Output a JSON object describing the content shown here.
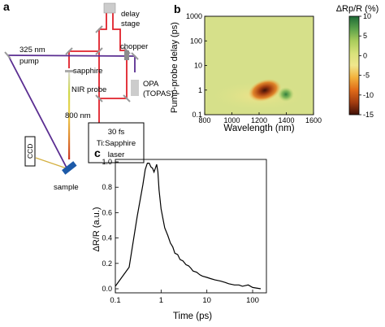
{
  "panel_labels": {
    "a": "a",
    "b": "b",
    "c": "c"
  },
  "schematic": {
    "labels": {
      "delay_stage": [
        "delay",
        "stage"
      ],
      "chopper": "chopper",
      "pump_wavelength": "325 nm",
      "pump": "pump",
      "sapphire": "sapphire",
      "nir_probe": "NIR probe",
      "opa": [
        "OPA",
        "(TOPAS)"
      ],
      "ccd": "CCD",
      "wavelength_800": "800 nm",
      "sample": "sample",
      "laser": [
        "30 fs",
        "Ti:Sapphire",
        "laser"
      ]
    },
    "colors": {
      "red_beam": "#e0202a",
      "purple_beam": "#5a2d91",
      "sample": "#1d5aa8",
      "box": "#000000",
      "mirror": "#999999"
    }
  },
  "chart_data": [
    {
      "type": "heatmap",
      "xlabel": "Wavelength (nm)",
      "ylabel": "Pump-probe delay (ps)",
      "x_ticks": [
        "800",
        "1000",
        "1200",
        "1400",
        "1600"
      ],
      "xlim": [
        800,
        1600
      ],
      "y_scale": "log",
      "y_ticks": [
        "0.1",
        "1",
        "10",
        "100",
        "1000"
      ],
      "ylim": [
        0.1,
        1000
      ],
      "colorbar": {
        "title": "ΔRp/R (%)",
        "ticks": [
          "10",
          "5",
          "0",
          "-5",
          "-10",
          "-15"
        ],
        "range": [
          -15,
          10
        ],
        "colors": [
          "#3f1008",
          "#a33d10",
          "#e06a18",
          "#f2b03a",
          "#f0e68c",
          "#d8e27a",
          "#a9cc5c",
          "#5aa04a",
          "#1d6a36"
        ]
      },
      "features": [
        {
          "label": "negative",
          "center_nm": 1290,
          "center_ps": 0.6,
          "min_value": -15
        },
        {
          "label": "positive",
          "center_nm": 1440,
          "center_ps": 0.5,
          "max_value": 8
        }
      ]
    },
    {
      "type": "line",
      "xlabel": "Time (ps)",
      "ylabel": "ΔR/R (a.u.)",
      "x_scale": "log",
      "xlim": [
        0.1,
        200
      ],
      "x_ticks": [
        "0.1",
        "1",
        "10",
        "100"
      ],
      "ylim": [
        0.0,
        1.0
      ],
      "y_ticks": [
        "0.0",
        "0.2",
        "0.4",
        "0.6",
        "0.8",
        "1.0"
      ],
      "series": [
        {
          "x": [
            0.1,
            0.2,
            0.3,
            0.4,
            0.45,
            0.5,
            0.55,
            0.6,
            0.65,
            0.7,
            0.75,
            0.8,
            0.85,
            0.9,
            1.0,
            1.1,
            1.2,
            1.4,
            1.6,
            1.8,
            2.0,
            2.3,
            2.6,
            3.0,
            3.5,
            4.0,
            4.5,
            5.0,
            6.0,
            7.0,
            8.0,
            10,
            12,
            15,
            20,
            25,
            30,
            40,
            50,
            60,
            80,
            100,
            150
          ],
          "y": [
            0.02,
            0.17,
            0.57,
            0.82,
            0.94,
            0.99,
            0.99,
            0.96,
            0.95,
            0.92,
            0.95,
            0.98,
            0.92,
            0.78,
            0.63,
            0.55,
            0.48,
            0.42,
            0.36,
            0.33,
            0.28,
            0.27,
            0.23,
            0.22,
            0.19,
            0.18,
            0.16,
            0.14,
            0.13,
            0.11,
            0.1,
            0.09,
            0.08,
            0.07,
            0.06,
            0.05,
            0.04,
            0.03,
            0.03,
            0.02,
            0.03,
            0.01,
            0.0
          ]
        }
      ]
    }
  ]
}
